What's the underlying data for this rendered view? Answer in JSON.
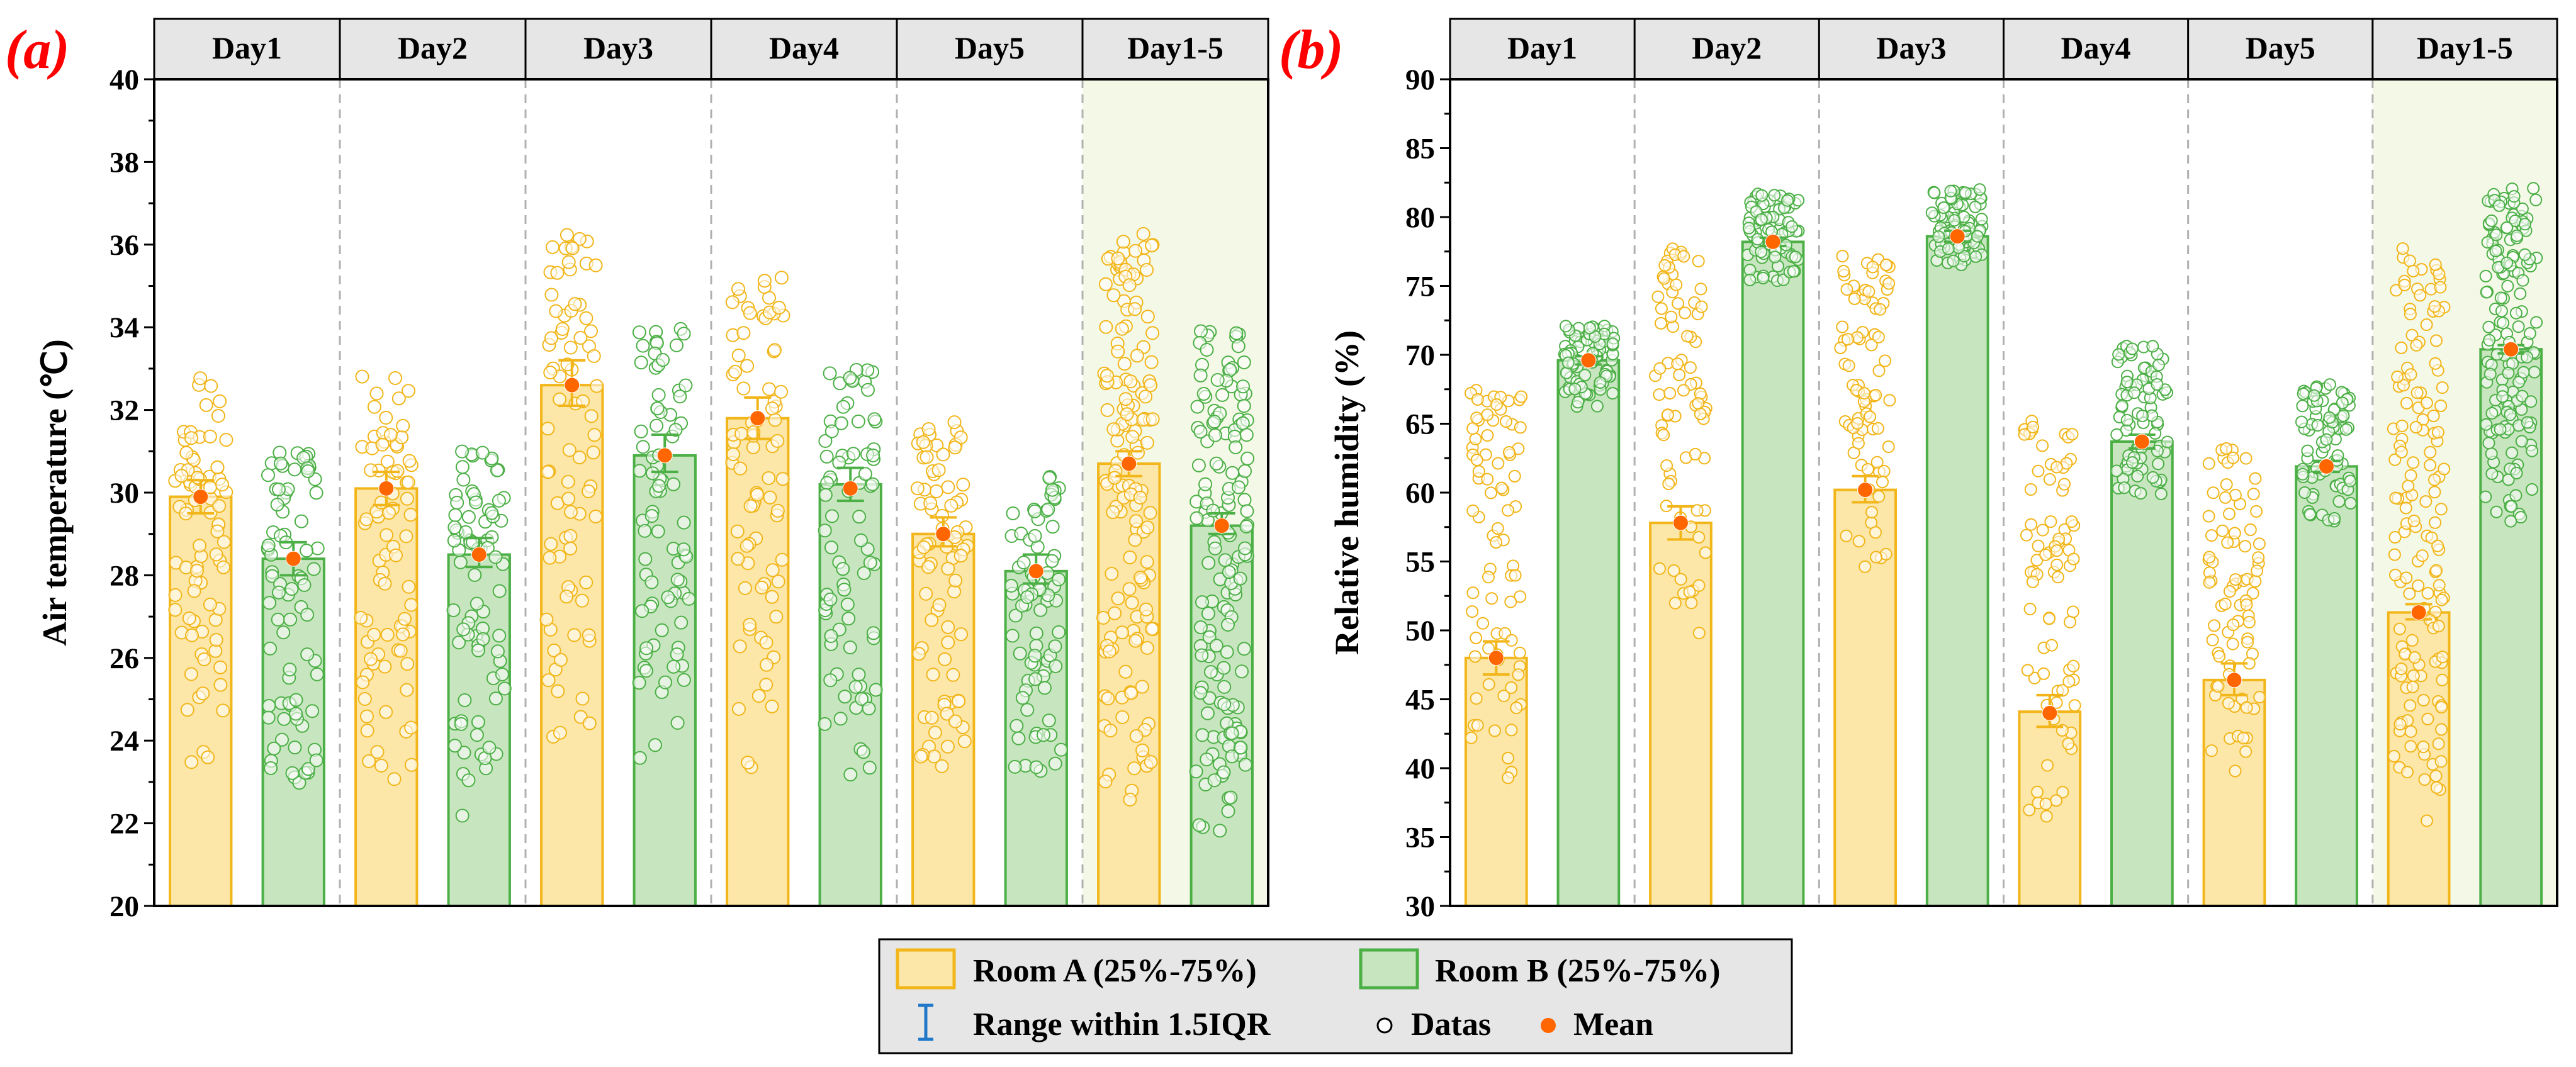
{
  "colors": {
    "room_a_fill": "#fce7a8",
    "room_a_edge": "#f2b61a",
    "room_b_fill": "#c7e5bf",
    "room_b_edge": "#4cb046",
    "mean": "#ff6600",
    "range_icon": "#1f78c8",
    "header_fill": "#e6e6e6",
    "highlight": "#f4f8e6",
    "panel_letter": "#ff0000"
  },
  "legend": {
    "room_a": "Room A (25%-75%)",
    "room_b": "Room B (25%-75%)",
    "range": "Range within 1.5IQR",
    "datas": "Datas",
    "mean": "Mean"
  },
  "chart_data": [
    {
      "panel": "(a)",
      "type": "bar",
      "title": "",
      "xlabel": "",
      "ylabel": "Air temperature (℃)",
      "ylim": [
        20,
        40
      ],
      "yticks": [
        20,
        22,
        24,
        26,
        28,
        30,
        32,
        34,
        36,
        38,
        40
      ],
      "groups": [
        "Day1",
        "Day2",
        "Day3",
        "Day4",
        "Day5",
        "Day1-5"
      ],
      "highlight_group": "Day1-5",
      "series": [
        {
          "name": "Room A",
          "values": [
            29.9,
            30.1,
            32.6,
            31.8,
            29.0,
            30.7
          ],
          "error_low": [
            29.5,
            29.7,
            32.1,
            31.3,
            28.7,
            30.4
          ],
          "error_high": [
            30.3,
            30.5,
            33.2,
            32.3,
            29.4,
            31.0
          ],
          "mean": [
            29.9,
            30.1,
            32.6,
            31.8,
            29.0,
            30.7
          ],
          "data_min": [
            23.2,
            22.4,
            23.6,
            23.1,
            23.3,
            22.4
          ],
          "data_max": [
            32.8,
            33.0,
            36.3,
            35.3,
            31.9,
            36.3
          ]
        },
        {
          "name": "Room B",
          "values": [
            28.4,
            28.5,
            30.9,
            30.2,
            28.1,
            29.2
          ],
          "error_low": [
            28.0,
            28.2,
            30.5,
            29.8,
            27.8,
            29.0
          ],
          "error_high": [
            28.8,
            28.9,
            31.4,
            30.6,
            28.5,
            29.5
          ],
          "mean": [
            28.4,
            28.5,
            30.9,
            30.1,
            28.1,
            29.2
          ],
          "data_min": [
            22.5,
            21.8,
            23.4,
            22.4,
            23.0,
            21.8
          ],
          "data_max": [
            31.2,
            31.0,
            34.0,
            33.2,
            30.5,
            34.0
          ]
        }
      ]
    },
    {
      "panel": "(b)",
      "type": "bar",
      "title": "",
      "xlabel": "",
      "ylabel": "Relative humidity (%)",
      "ylim": [
        30,
        90
      ],
      "yticks": [
        30,
        35,
        40,
        45,
        50,
        55,
        60,
        65,
        70,
        75,
        80,
        85,
        90
      ],
      "groups": [
        "Day1",
        "Day2",
        "Day3",
        "Day4",
        "Day5",
        "Day1-5"
      ],
      "highlight_group": "Day1-5",
      "series": [
        {
          "name": "Room A",
          "values": [
            48.0,
            57.8,
            60.2,
            44.1,
            46.4,
            51.3
          ],
          "error_low": [
            46.8,
            56.6,
            59.3,
            43.0,
            45.3,
            50.8
          ],
          "error_high": [
            49.2,
            59.0,
            61.2,
            45.3,
            47.6,
            51.9
          ],
          "mean": [
            48.0,
            57.8,
            60.2,
            44.0,
            46.4,
            51.3
          ],
          "data_min": [
            38.5,
            47.9,
            53.5,
            35.8,
            37.9,
            35.8
          ],
          "data_max": [
            67.7,
            77.8,
            77.3,
            65.2,
            63.6,
            77.8
          ]
        },
        {
          "name": "Room B",
          "values": [
            69.6,
            78.2,
            78.6,
            63.7,
            61.9,
            70.4
          ],
          "error_low": [
            69.3,
            77.9,
            78.2,
            63.2,
            61.5,
            70.1
          ],
          "error_high": [
            69.9,
            78.5,
            79.0,
            64.2,
            62.3,
            70.7
          ],
          "mean": [
            69.6,
            78.2,
            78.6,
            63.7,
            61.9,
            70.4
          ],
          "data_min": [
            66.2,
            74.6,
            76.3,
            59.6,
            57.8,
            57.8
          ],
          "data_max": [
            72.1,
            81.7,
            82.1,
            70.7,
            67.9,
            82.1
          ]
        }
      ]
    }
  ]
}
